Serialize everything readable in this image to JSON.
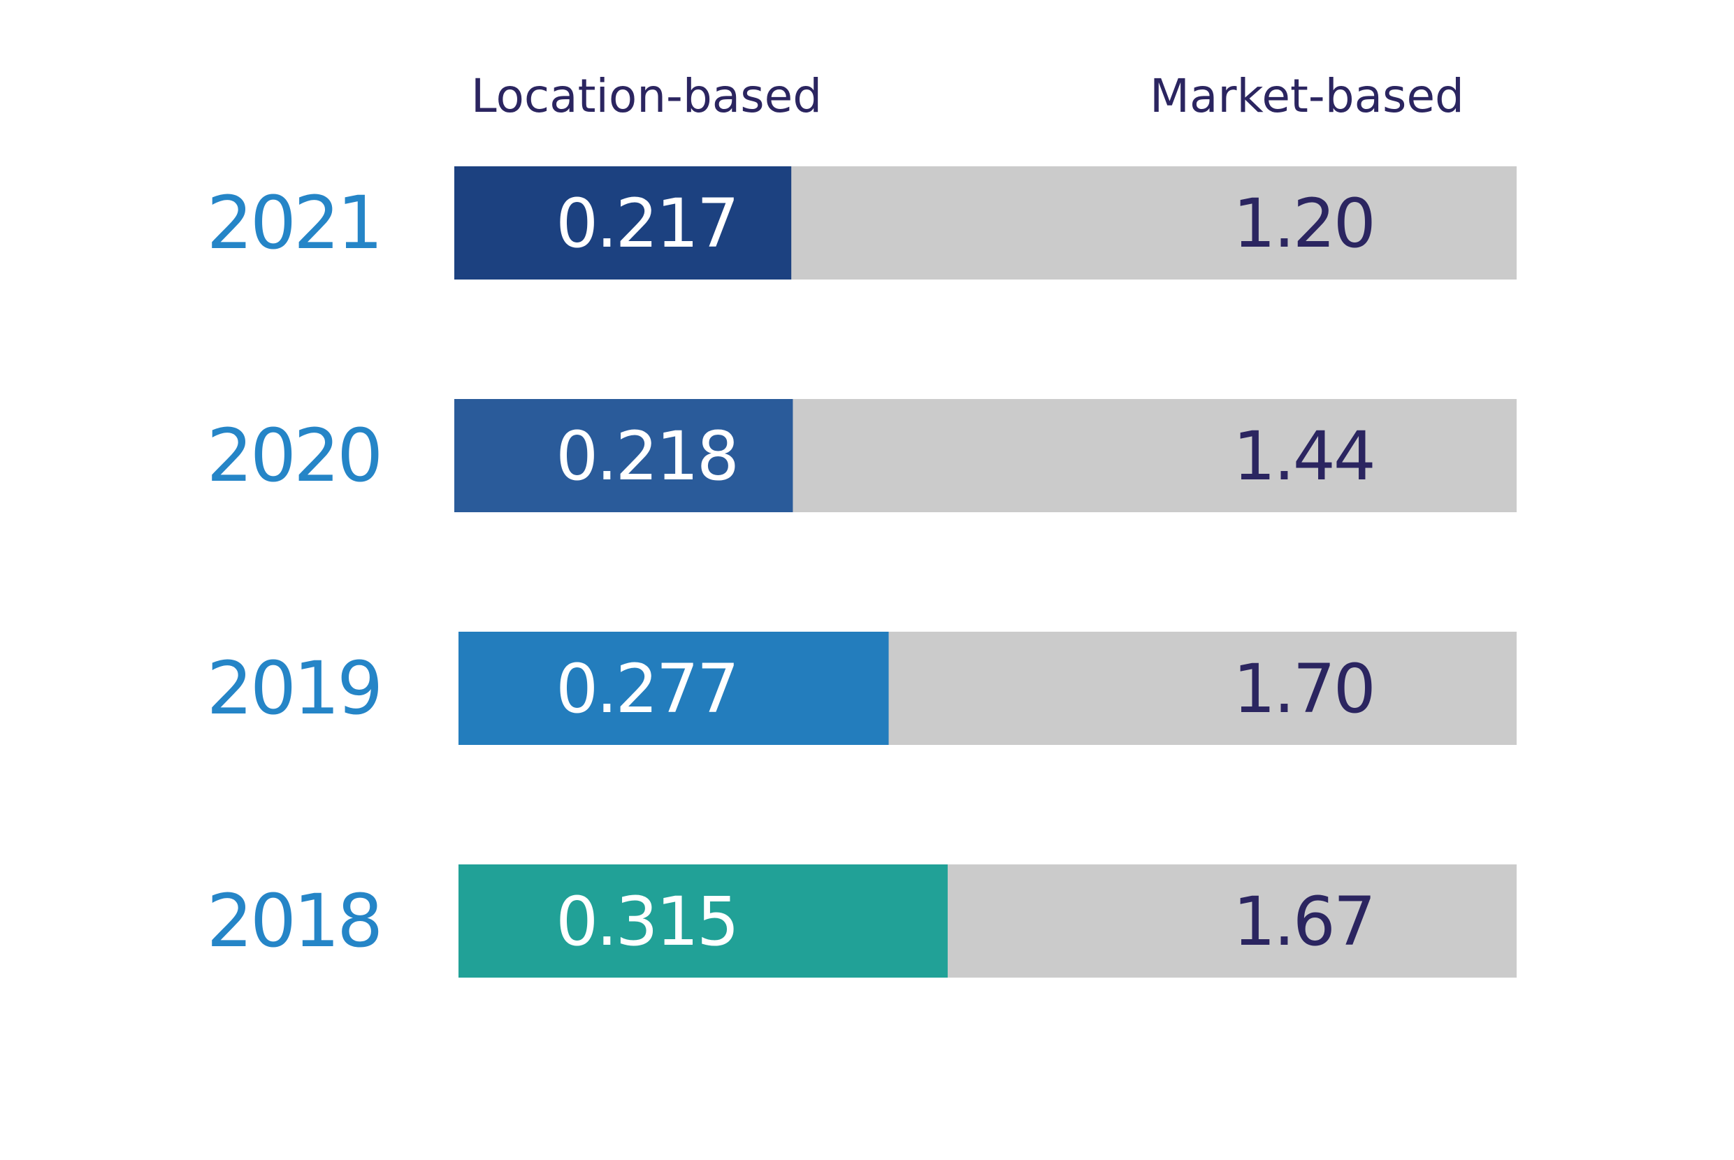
{
  "chart_data": {
    "type": "bar",
    "orientation": "horizontal",
    "categories": [
      "2021",
      "2020",
      "2019",
      "2018"
    ],
    "series": [
      {
        "name": "Location-based",
        "values": [
          0.217,
          0.218,
          0.277,
          0.315
        ],
        "labels": [
          "0.217",
          "0.218",
          "0.277",
          "0.315"
        ]
      },
      {
        "name": "Market-based",
        "values": [
          1.2,
          1.44,
          1.7,
          1.67
        ],
        "labels": [
          "1.20",
          "1.44",
          "1.70",
          "1.67"
        ]
      }
    ],
    "bar_colors": [
      "#1c4180",
      "#2a5b9a",
      "#237dbd",
      "#21a197"
    ],
    "background_bar_color": "#cbcbcb",
    "year_color": "#2585c7",
    "header_color": "#2b2560",
    "market_label_color": "#2b2560",
    "location_label_color": "#ffffff",
    "legend": "top",
    "grid": false
  }
}
